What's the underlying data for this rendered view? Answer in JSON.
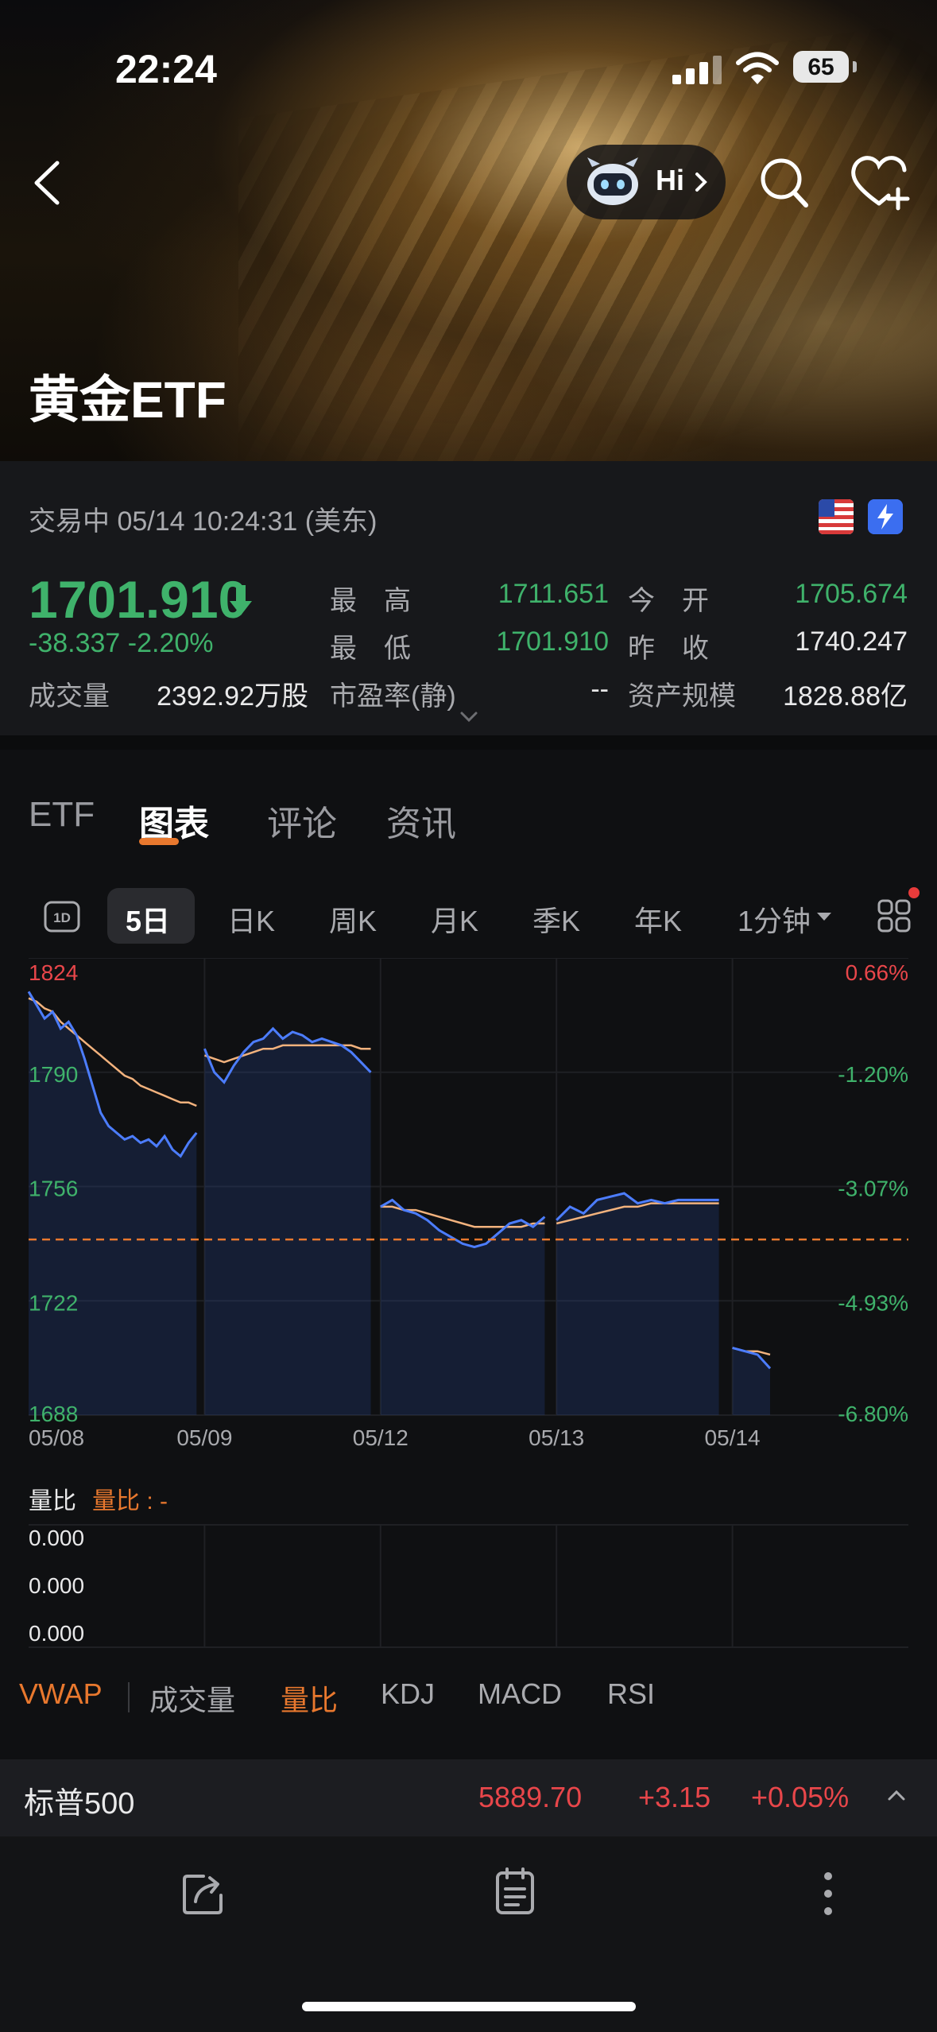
{
  "status_bar": {
    "time": "22:24",
    "battery": "65"
  },
  "header": {
    "hi_label": "Hi",
    "title": "黄金ETF"
  },
  "quote": {
    "status": "交易中 05/14 10:24:31 (美东)",
    "price": "1701.910",
    "change": "-38.337  -2.20%",
    "high_label": "最　高",
    "high": "1711.651",
    "low_label": "最　低",
    "low": "1701.910",
    "open_label": "今　开",
    "open": "1705.674",
    "prev_close_label": "昨　收",
    "prev_close": "1740.247",
    "volume_label": "成交量",
    "volume": "2392.92万股",
    "pe_label": "市盈率(静)",
    "pe": "--",
    "aum_label": "资产规模",
    "aum": "1828.88亿"
  },
  "tabs": [
    "ETF",
    "图表",
    "评论",
    "资讯"
  ],
  "active_tab": "图表",
  "periods": [
    "5日",
    "日K",
    "周K",
    "月K",
    "季K",
    "年K",
    "1分钟"
  ],
  "active_period": "5日",
  "chart_data": {
    "type": "line",
    "x_labels": [
      "05/08",
      "05/09",
      "05/12",
      "05/13",
      "05/14"
    ],
    "y_left_ticks": [
      "1824",
      "1790",
      "1756",
      "1722",
      "1688"
    ],
    "y_right_ticks": [
      "0.66%",
      "-1.20%",
      "-3.07%",
      "-4.93%",
      "-6.80%"
    ],
    "ylim": [
      1688,
      1824
    ],
    "prev_close": 1740.247,
    "series": [
      {
        "values": [
          1814,
          1810,
          1806,
          1808,
          1803,
          1805,
          1801,
          1794,
          1786,
          1778,
          1774,
          1772,
          1770,
          1771,
          1769,
          1770,
          1768,
          1771,
          1767,
          1765,
          1769,
          1772,
          1797,
          1790,
          1787,
          1792,
          1796,
          1799,
          1800,
          1803,
          1800,
          1802,
          1801,
          1799,
          1800,
          1799,
          1798,
          1796,
          1793,
          1790,
          1750,
          1752,
          1749,
          1748,
          1746,
          1743,
          1741,
          1739,
          1738,
          1739,
          1742,
          1745,
          1746,
          1744,
          1747,
          1746,
          1750,
          1748,
          1752,
          1753,
          1754,
          1751,
          1752,
          1751,
          1752,
          1752,
          1752,
          1752,
          1708,
          1707,
          1706,
          1701.9
        ]
      },
      {
        "values": [
          1812,
          1811,
          1809,
          1808,
          1805,
          1803,
          1801,
          1799,
          1797,
          1795,
          1793,
          1791,
          1789,
          1788,
          1786,
          1785,
          1784,
          1783,
          1782,
          1781,
          1781,
          1780,
          1795,
          1794,
          1793,
          1794,
          1795,
          1796,
          1797,
          1797,
          1798,
          1798,
          1798,
          1798,
          1798,
          1798,
          1798,
          1798,
          1797,
          1797,
          1750,
          1750,
          1749,
          1749,
          1748,
          1747,
          1746,
          1745,
          1744,
          1744,
          1744,
          1744,
          1744,
          1745,
          1745,
          1745,
          1746,
          1747,
          1748,
          1749,
          1750,
          1750,
          1751,
          1751,
          1751,
          1751,
          1751,
          1751,
          1708,
          1707,
          1707,
          1706
        ]
      }
    ],
    "session_breaks": [
      22,
      40,
      55,
      68
    ]
  },
  "indicator": {
    "title": "量比",
    "subtitle": "量比 : -",
    "ticks": [
      "0.000",
      "0.000",
      "0.000"
    ]
  },
  "indicator_tabs": [
    "VWAP",
    "成交量",
    "量比",
    "KDJ",
    "MACD",
    "RSI"
  ],
  "index_bar": {
    "name": "标普500",
    "value": "5889.70",
    "change": "+3.15",
    "pct": "+0.05%"
  },
  "colors": {
    "up": "#e8464a",
    "down": "#3fb26b",
    "accent": "#e8782e",
    "price_line": "#4c7dff",
    "avg_line": "#f2b27d"
  }
}
